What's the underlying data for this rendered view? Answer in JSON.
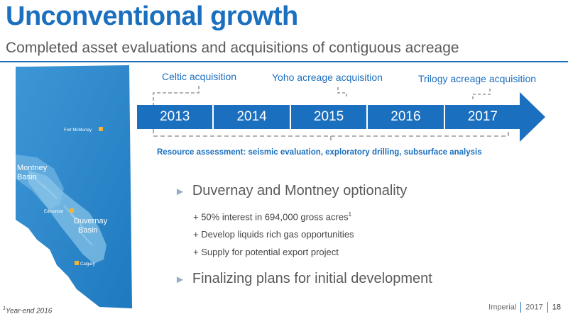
{
  "header": {
    "title": "Unconventional growth",
    "subtitle": "Completed asset evaluations and acquisitions of contiguous acreage"
  },
  "map": {
    "labels": {
      "fort_mcmurray": "Fort McMurray",
      "montney_line1": "Montney",
      "montney_line2": "Basin",
      "edmonton": "Edmonton",
      "duvernay_line1": "Duvernay",
      "duvernay_line2": "Basin",
      "calgary": "Calgary"
    },
    "colors": {
      "province": "#2a88cc",
      "basin": "#7fbde6",
      "city_marker": "#f5b335"
    }
  },
  "timeline": {
    "acquisitions": {
      "celtic": "Celtic acquisition",
      "yoho": "Yoho acreage acquisition",
      "trilogy": "Trilogy acreage acquisition"
    },
    "years": [
      "2013",
      "2014",
      "2015",
      "2016",
      "2017"
    ],
    "resource_assessment": "Resource assessment: seismic evaluation, exploratory drilling, subsurface analysis",
    "colors": {
      "bar": "#1b6fbf",
      "dash": "#9a9a9a"
    }
  },
  "content": {
    "bullet1": "Duvernay and Montney optionality",
    "sub1_text": "+ 50% interest in 694,000 gross acres",
    "sub1_sup": "1",
    "sub2": "+ Develop liquids rich gas opportunities",
    "sub3": "+ Supply for potential export project",
    "bullet2": "Finalizing plans for initial development"
  },
  "footer": {
    "footnote_sup": "1",
    "footnote_text": "Year-end 2016",
    "company": "Imperial",
    "year": "2017",
    "page": "18"
  }
}
